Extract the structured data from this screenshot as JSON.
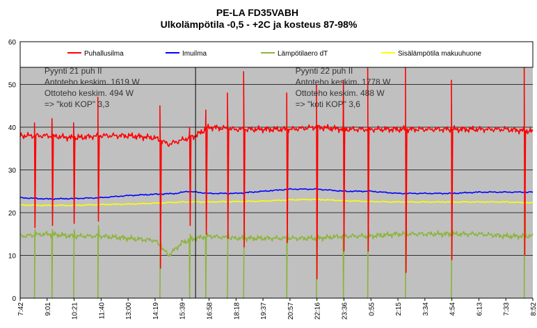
{
  "chart_data": {
    "type": "line",
    "title": "PE-LA FD35VABH",
    "subtitle": "Ulkolämpötila -0,5 - +2C ja kosteus 87-98%",
    "xlabel": "",
    "ylabel": "",
    "ylim": [
      0,
      60
    ],
    "yticks": [
      0,
      10,
      20,
      30,
      40,
      50,
      60
    ],
    "xticks": [
      "7:42",
      "9:01",
      "10:21",
      "11:40",
      "13:00",
      "14:19",
      "15:39",
      "16:58",
      "18:18",
      "19:37",
      "20:57",
      "22:16",
      "23:36",
      "0:55",
      "2:15",
      "3:34",
      "4:54",
      "6:13",
      "7:33",
      "8:52"
    ],
    "grid": true,
    "legend_position": "top",
    "colors": {
      "plot_background": "#c0c0c0",
      "divider": "#000000"
    },
    "divider_x": 6.5,
    "series": [
      {
        "name": "Puhallusilma",
        "color": "#ff0000",
        "baseline": [
          [
            0,
            38
          ],
          [
            1,
            38
          ],
          [
            2,
            37.5
          ],
          [
            3,
            38
          ],
          [
            4,
            38
          ],
          [
            5,
            37.5
          ],
          [
            5.5,
            36
          ],
          [
            6,
            37
          ],
          [
            6.5,
            38
          ],
          [
            7,
            40
          ],
          [
            8,
            39.5
          ],
          [
            9,
            39.5
          ],
          [
            10,
            39.5
          ],
          [
            11,
            40
          ],
          [
            12,
            39.5
          ],
          [
            13,
            39.5
          ],
          [
            14,
            39.5
          ],
          [
            15,
            39.5
          ],
          [
            16,
            39.5
          ],
          [
            17,
            39.5
          ],
          [
            18,
            39.5
          ],
          [
            19,
            39
          ]
        ],
        "spikes": [
          {
            "x": 0.55,
            "high": 41,
            "low": 16.5
          },
          {
            "x": 1.2,
            "high": 42,
            "low": 17
          },
          {
            "x": 2.0,
            "high": 41,
            "low": 17.5
          },
          {
            "x": 2.9,
            "high": 47,
            "low": 18
          },
          {
            "x": 5.2,
            "high": 45,
            "low": 7
          },
          {
            "x": 6.3,
            "high": 40,
            "low": 17
          },
          {
            "x": 6.9,
            "high": 44,
            "low": 15
          },
          {
            "x": 7.7,
            "high": 48,
            "low": 14
          },
          {
            "x": 8.3,
            "high": 53,
            "low": 12
          },
          {
            "x": 9.9,
            "high": 48,
            "low": 13
          },
          {
            "x": 11.0,
            "high": 50,
            "low": 4.5
          },
          {
            "x": 12.0,
            "high": 51,
            "low": 11
          },
          {
            "x": 12.9,
            "high": 55,
            "low": 11
          },
          {
            "x": 14.3,
            "high": 54,
            "low": 6
          },
          {
            "x": 16.0,
            "high": 51,
            "low": 9
          },
          {
            "x": 18.7,
            "high": 54,
            "low": 10
          }
        ]
      },
      {
        "name": "Imuilma",
        "color": "#0000ff",
        "points": [
          [
            0,
            23.5
          ],
          [
            1,
            23.2
          ],
          [
            2,
            23.3
          ],
          [
            3,
            23.5
          ],
          [
            4,
            24
          ],
          [
            5,
            24.3
          ],
          [
            5.8,
            24.5
          ],
          [
            6.2,
            25
          ],
          [
            7,
            24.5
          ],
          [
            8,
            24.5
          ],
          [
            9,
            25
          ],
          [
            10,
            25.5
          ],
          [
            11,
            25.5
          ],
          [
            12,
            25
          ],
          [
            13,
            25
          ],
          [
            14,
            24.5
          ],
          [
            15,
            24.5
          ],
          [
            16,
            24.5
          ],
          [
            17,
            24.8
          ],
          [
            18,
            24.8
          ],
          [
            19,
            24.8
          ]
        ]
      },
      {
        "name": "Lämpötilaero dT",
        "color": "#8db43c",
        "baseline": [
          [
            0,
            14.5
          ],
          [
            1,
            15
          ],
          [
            2,
            14.5
          ],
          [
            3,
            14.5
          ],
          [
            4,
            14
          ],
          [
            5,
            13.5
          ],
          [
            5.5,
            10
          ],
          [
            6,
            13
          ],
          [
            6.5,
            14
          ],
          [
            7,
            14.5
          ],
          [
            8,
            14
          ],
          [
            9,
            14
          ],
          [
            10,
            14
          ],
          [
            11,
            14
          ],
          [
            12,
            14.5
          ],
          [
            13,
            14.5
          ],
          [
            14,
            15
          ],
          [
            15,
            15
          ],
          [
            16,
            15
          ],
          [
            17,
            15
          ],
          [
            18,
            14.5
          ],
          [
            19,
            14.5
          ]
        ],
        "dips": [
          {
            "x": 0.55,
            "low": 0,
            "high": 16
          },
          {
            "x": 1.2,
            "low": 0,
            "high": 16
          },
          {
            "x": 2.0,
            "low": 0,
            "high": 16
          },
          {
            "x": 2.9,
            "low": 0,
            "high": 17
          },
          {
            "x": 5.2,
            "low": 0,
            "high": 14
          },
          {
            "x": 6.3,
            "low": 0,
            "high": 15
          },
          {
            "x": 6.9,
            "low": 0,
            "high": 15
          },
          {
            "x": 7.7,
            "low": 0,
            "high": 16
          },
          {
            "x": 8.3,
            "low": 0,
            "high": 17
          },
          {
            "x": 9.9,
            "low": 0,
            "high": 16
          },
          {
            "x": 11.0,
            "low": 0,
            "high": 16
          },
          {
            "x": 12.0,
            "low": 0,
            "high": 16
          },
          {
            "x": 12.9,
            "low": 0,
            "high": 17
          },
          {
            "x": 14.3,
            "low": 0,
            "high": 17
          },
          {
            "x": 16.0,
            "low": 0,
            "high": 17
          },
          {
            "x": 18.7,
            "low": 0,
            "high": 30
          }
        ]
      },
      {
        "name": "Sisälämpötila makuuhuone",
        "color": "#ffff00",
        "points": [
          [
            0,
            21.8
          ],
          [
            1,
            21.7
          ],
          [
            2,
            21.7
          ],
          [
            3,
            21.9
          ],
          [
            4,
            22
          ],
          [
            5,
            22.2
          ],
          [
            6,
            22.5
          ],
          [
            7,
            22.5
          ],
          [
            8,
            22.6
          ],
          [
            9,
            22.7
          ],
          [
            10,
            23
          ],
          [
            11,
            23.1
          ],
          [
            12,
            22.8
          ],
          [
            13,
            22.6
          ],
          [
            14,
            22.5
          ],
          [
            15,
            22.5
          ],
          [
            16,
            22.5
          ],
          [
            17,
            22.5
          ],
          [
            18,
            22.5
          ],
          [
            19,
            22.3
          ]
        ]
      }
    ],
    "annotations": [
      {
        "x": 0.9,
        "y": 52.5,
        "lines": [
          "Pyynti 21 puh II",
          "Antoteho keskim. 1619 W",
          "Ottoteho keskim. 494 W",
          "=> \"koti KOP\" 3,3"
        ]
      },
      {
        "x": 10.2,
        "y": 52.5,
        "lines": [
          "Pyynti 22 puh II",
          "Antoteho keskim. 1778 W",
          "Ottoteho keskim. 488 W",
          "=> \"koti KOP\" 3,6"
        ]
      }
    ]
  }
}
